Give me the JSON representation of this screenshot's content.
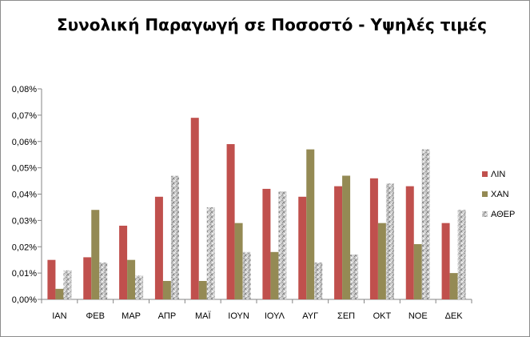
{
  "chart_data": {
    "type": "bar",
    "title": "Συνολική Παραγωγή σε Ποσοστό - Υψηλές τιμές",
    "xlabel": "",
    "ylabel": "",
    "categories": [
      "ΙΑΝ",
      "ΦΕΒ",
      "ΜΑΡ",
      "ΑΠΡ",
      "ΜΑΪ",
      "ΙΟΥΝ",
      "ΙΟΥΛ",
      "ΑΥΓ",
      "ΣΕΠ",
      "ΟΚΤ",
      "ΝΟΕ",
      "ΔΕΚ"
    ],
    "series": [
      {
        "name": "ΛΙΝ",
        "color": "#c0504d",
        "values": [
          0.015,
          0.016,
          0.028,
          0.039,
          0.069,
          0.059,
          0.042,
          0.039,
          0.043,
          0.046,
          0.043,
          0.029
        ]
      },
      {
        "name": "ΧΑΝ",
        "color": "#948a54",
        "values": [
          0.004,
          0.034,
          0.015,
          0.007,
          0.007,
          0.029,
          0.018,
          0.057,
          0.047,
          0.029,
          0.021,
          0.01
        ]
      },
      {
        "name": "ΑΘΕΡ",
        "color": "#bfbfbf",
        "values": [
          0.011,
          0.014,
          0.009,
          0.047,
          0.035,
          0.018,
          0.041,
          0.014,
          0.017,
          0.044,
          0.057,
          0.034
        ]
      }
    ],
    "ylim": [
      0,
      0.08
    ],
    "yticks": [
      0,
      0.01,
      0.02,
      0.03,
      0.04,
      0.05,
      0.06,
      0.07,
      0.08
    ],
    "ytick_labels": [
      "0,00%",
      "0,01%",
      "0,02%",
      "0,03%",
      "0,04%",
      "0,05%",
      "0,06%",
      "0,07%",
      "0,08%"
    ],
    "grid": false,
    "legend_position": "right"
  }
}
